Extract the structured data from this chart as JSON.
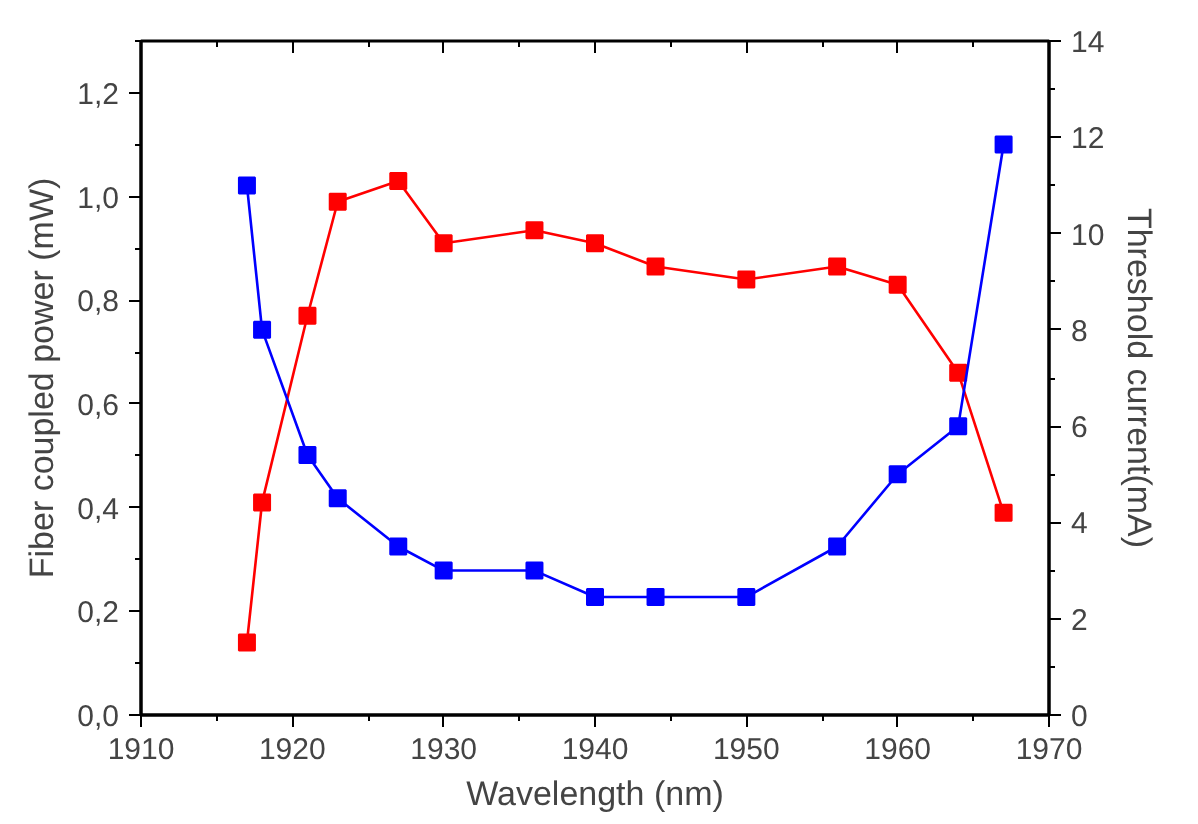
{
  "chart_data": {
    "type": "line",
    "xlabel": "Wavelength (nm)",
    "ylabel": "Fiber coupled power (mW)",
    "y2label": "Threshold current(mA)",
    "xlim": [
      1910,
      1970
    ],
    "xticks": [
      1910,
      1920,
      1930,
      1940,
      1950,
      1960,
      1970
    ],
    "ylim": [
      0,
      1.3
    ],
    "yticks": [
      {
        "value": 0,
        "label": "0,0"
      },
      {
        "value": 0.2,
        "label": "0,2"
      },
      {
        "value": 0.4,
        "label": "0,4"
      },
      {
        "value": 0.6,
        "label": "0,6"
      },
      {
        "value": 0.8,
        "label": "0,8"
      },
      {
        "value": 1.0,
        "label": "1,0"
      },
      {
        "value": 1.2,
        "label": "1,2"
      }
    ],
    "y2lim": [
      0,
      14
    ],
    "y2ticks": [
      0,
      2,
      4,
      6,
      8,
      10,
      12,
      14
    ],
    "marker": "square",
    "grid": false,
    "series": [
      {
        "color": "#ff0000",
        "x": [
          1917,
          1918,
          1921,
          1923,
          1927,
          1930,
          1936,
          1940,
          1944,
          1950,
          1956,
          1960,
          1964,
          1967
        ],
        "values": [
          0.14,
          0.41,
          0.77,
          0.99,
          1.03,
          0.91,
          0.935,
          0.91,
          0.865,
          0.84,
          0.865,
          0.83,
          0.66,
          0.39
        ]
      },
      {
        "color": "#0000ff",
        "axis": "y2",
        "x": [
          1917,
          1918,
          1921,
          1923,
          1927,
          1930,
          1936,
          1940,
          1944,
          1950,
          1956,
          1960,
          1964,
          1967
        ],
        "values": [
          11.0,
          8.0,
          5.4,
          4.5,
          3.5,
          3.0,
          3.0,
          2.45,
          2.45,
          2.45,
          3.5,
          5.0,
          6.0,
          11.85
        ]
      }
    ]
  }
}
